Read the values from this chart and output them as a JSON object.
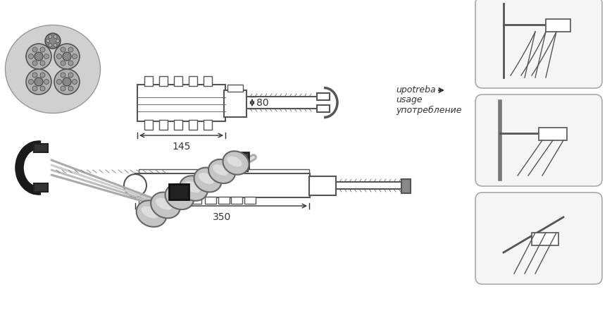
{
  "background_color": "#ffffff",
  "fig_width": 8.7,
  "fig_height": 4.68,
  "dpi": 100,
  "texts": {
    "upotreba": "upotreba",
    "usage": "usage",
    "upotreblenie": "употребление",
    "dim_80": "80",
    "dim_145": "145",
    "dim_350": "350"
  },
  "colors": {
    "line": "#555555",
    "dim_line": "#333333",
    "text": "#333333",
    "box_fill": "#f5f5f5",
    "box_edge": "#bbbbbb",
    "background": "#ffffff"
  }
}
